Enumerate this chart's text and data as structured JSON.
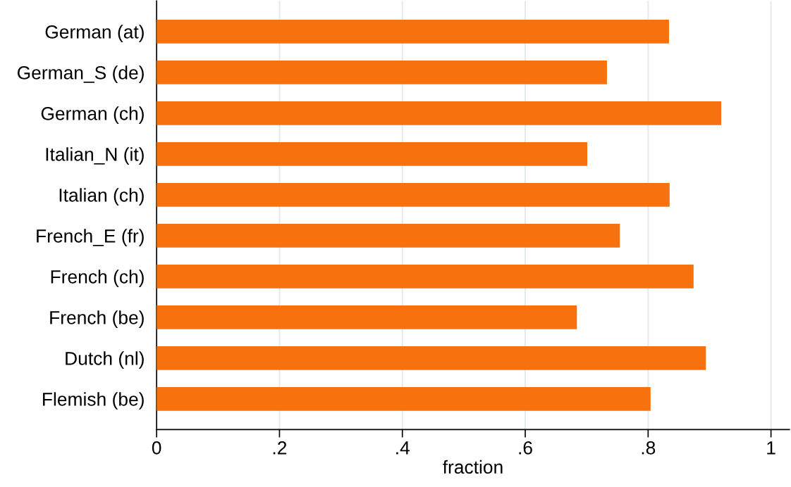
{
  "chart_data": {
    "type": "bar",
    "orientation": "horizontal",
    "xlabel": "fraction",
    "categories": [
      "German (at)",
      "German_S (de)",
      "German (ch)",
      "Italian_N (it)",
      "Italian (ch)",
      "French_E (fr)",
      "French (ch)",
      "French (be)",
      "Dutch (nl)",
      "Flemish (be)"
    ],
    "values": [
      0.834,
      0.733,
      0.919,
      0.701,
      0.835,
      0.754,
      0.874,
      0.684,
      0.894,
      0.804
    ],
    "color": "#f7720f",
    "xlim": [
      0,
      1.03
    ],
    "xticks": [
      0,
      {
        "value": 0.2,
        "label": ".2"
      },
      {
        "value": 0.4,
        "label": ".4"
      },
      {
        "value": 0.6,
        "label": ".6"
      },
      {
        "value": 0.8,
        "label": ".8"
      },
      1
    ],
    "grid": "x"
  }
}
